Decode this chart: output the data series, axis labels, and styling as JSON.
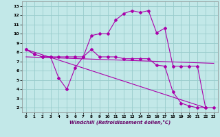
{
  "xlabel": "Windchill (Refroidissement éolien,°C)",
  "bg_color": "#c2e8e8",
  "grid_color": "#99cccc",
  "line_color": "#aa00aa",
  "xlim": [
    -0.5,
    23.5
  ],
  "ylim": [
    1.5,
    13.5
  ],
  "xticks": [
    0,
    1,
    2,
    3,
    4,
    5,
    6,
    7,
    8,
    9,
    10,
    11,
    12,
    13,
    14,
    15,
    16,
    17,
    18,
    19,
    20,
    21,
    22,
    23
  ],
  "yticks": [
    2,
    3,
    4,
    5,
    6,
    7,
    8,
    9,
    10,
    11,
    12,
    13
  ],
  "line1_x": [
    0,
    1,
    2,
    3,
    4,
    5,
    6,
    7,
    8,
    9,
    10,
    11,
    12,
    13,
    14,
    15,
    16,
    17,
    18,
    19,
    20,
    21,
    22
  ],
  "line1_y": [
    8.3,
    7.8,
    7.5,
    7.5,
    5.2,
    4.0,
    6.3,
    7.5,
    8.3,
    7.5,
    7.5,
    7.5,
    7.3,
    7.3,
    7.3,
    7.3,
    6.6,
    6.5,
    3.7,
    2.5,
    2.2,
    2.0,
    2.0
  ],
  "line2_x": [
    0,
    1,
    2,
    3,
    4,
    5,
    6,
    7,
    8,
    9,
    10,
    11,
    12,
    13,
    14,
    15,
    16,
    17,
    18,
    19,
    20,
    21,
    22,
    23
  ],
  "line2_y": [
    8.3,
    7.8,
    7.5,
    7.5,
    7.5,
    7.5,
    7.5,
    7.5,
    9.8,
    10.0,
    10.0,
    11.5,
    12.2,
    12.5,
    12.3,
    12.5,
    10.1,
    10.6,
    6.5,
    6.5,
    6.5,
    6.5,
    2.0,
    2.0
  ],
  "line3_x": [
    0,
    22
  ],
  "line3_y": [
    8.3,
    2.0
  ],
  "line4_x": [
    0,
    23
  ],
  "line4_y": [
    7.5,
    6.8
  ]
}
